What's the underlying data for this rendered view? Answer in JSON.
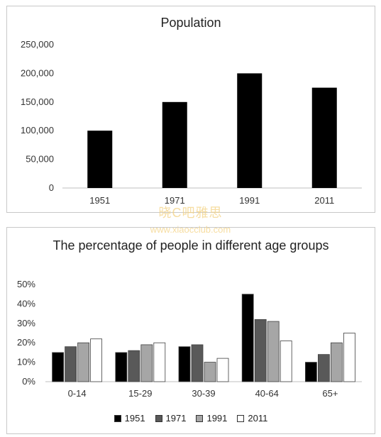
{
  "chart_data": [
    {
      "type": "bar",
      "title": "Population",
      "categories": [
        "1951",
        "1971",
        "1991",
        "2011"
      ],
      "values": [
        100000,
        150000,
        200000,
        175000
      ],
      "yticks": [
        "0",
        "50,000",
        "100,000",
        "150,000",
        "200,000",
        "250,000"
      ],
      "ylim": [
        0,
        250000
      ],
      "bar_color": "#000000",
      "grid": false,
      "legend": "none"
    },
    {
      "type": "bar",
      "title": "The percentage of people in different age groups",
      "categories": [
        "0-14",
        "15-29",
        "30-39",
        "40-64",
        "65+"
      ],
      "series": [
        {
          "name": "1951",
          "color": "#000000",
          "values": [
            15,
            15,
            18,
            45,
            10
          ]
        },
        {
          "name": "1971",
          "color": "#595959",
          "values": [
            18,
            16,
            19,
            32,
            14
          ]
        },
        {
          "name": "1991",
          "color": "#a6a6a6",
          "values": [
            20,
            19,
            10,
            31,
            20
          ]
        },
        {
          "name": "2011",
          "color": "#ffffff",
          "values": [
            22,
            20,
            12,
            21,
            25
          ]
        }
      ],
      "yticks": [
        "0%",
        "10%",
        "20%",
        "30%",
        "40%",
        "50%"
      ],
      "ylim": [
        0,
        50
      ],
      "grid": false,
      "legend": "bottom"
    }
  ],
  "watermark": {
    "line1": "晓C吧雅思",
    "line2": "www.xiaocclub.com"
  }
}
